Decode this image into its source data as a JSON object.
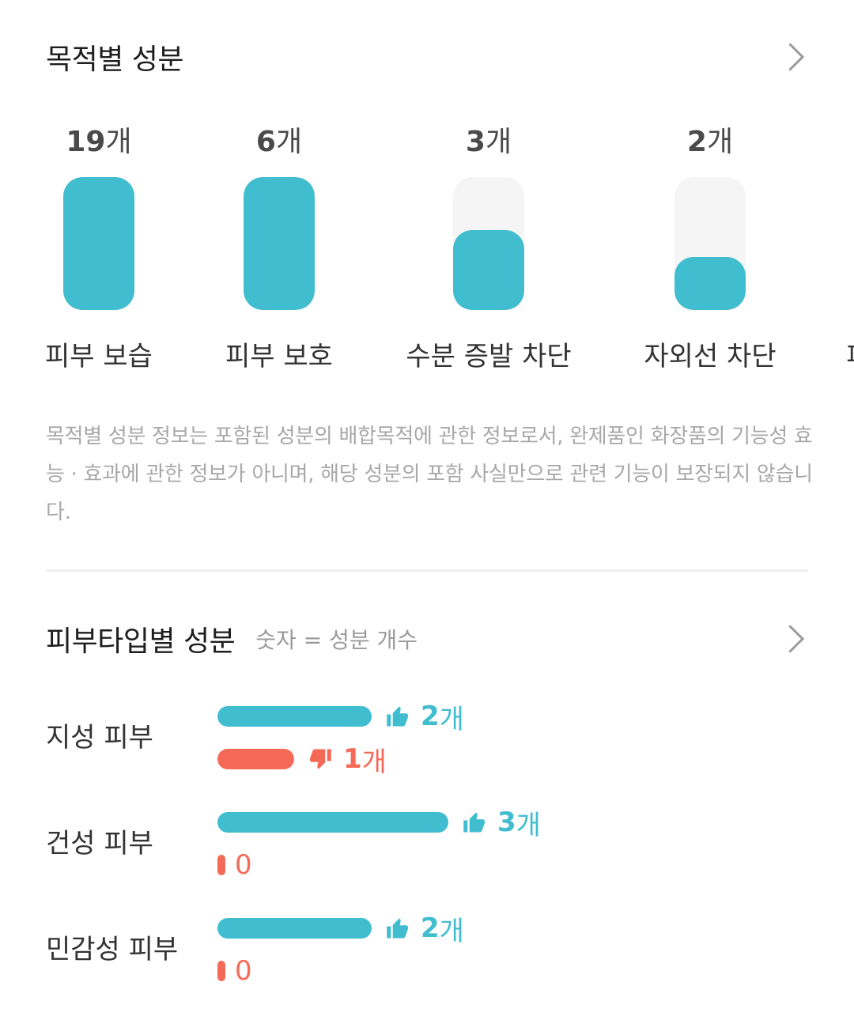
{
  "purpose": {
    "title": "목적별 성분",
    "columns": [
      {
        "count": "19",
        "unit": "개",
        "label": "피부 보습",
        "fill": 1.0
      },
      {
        "count": "6",
        "unit": "개",
        "label": "피부 보호",
        "fill": 1.0
      },
      {
        "count": "3",
        "unit": "개",
        "label": "수분 증발 차단",
        "fill": 0.6
      },
      {
        "count": "2",
        "unit": "개",
        "label": "자외선 차단",
        "fill": 0.4
      },
      {
        "count": "",
        "unit": "",
        "label": "피",
        "fill": 0
      }
    ],
    "disclaimer": "목적별 성분 정보는 포함된 성분의 배합목적에 관한 정보로서, 완제품인 화장품의 기능성 효능 · 효과에 관한 정보가 아니며, 해당 성분의 포함 사실만으로 관련 기능이 보장되지 않습니다."
  },
  "skin": {
    "title": "피부타입별 성분",
    "subtitle": "숫자 = 성분 개수",
    "rows": [
      {
        "label": "지성 피부",
        "good": {
          "value": "2",
          "unit": "개",
          "fill": 0.667
        },
        "bad": {
          "value": "1",
          "unit": "개",
          "fill": 0.333
        }
      },
      {
        "label": "건성 피부",
        "good": {
          "value": "3",
          "unit": "개",
          "fill": 1.0
        },
        "bad": {
          "value": "0",
          "unit": "",
          "fill": 0
        }
      },
      {
        "label": "민감성 피부",
        "good": {
          "value": "2",
          "unit": "개",
          "fill": 0.667
        },
        "bad": {
          "value": "0",
          "unit": "",
          "fill": 0
        }
      }
    ]
  },
  "colors": {
    "accent": "#41bdd0",
    "negative": "#f56a57",
    "track": "#f5f5f5"
  },
  "icons": {
    "chevron": "chevron-right-icon",
    "good": "thumbs-up-icon",
    "bad": "thumbs-down-icon"
  }
}
